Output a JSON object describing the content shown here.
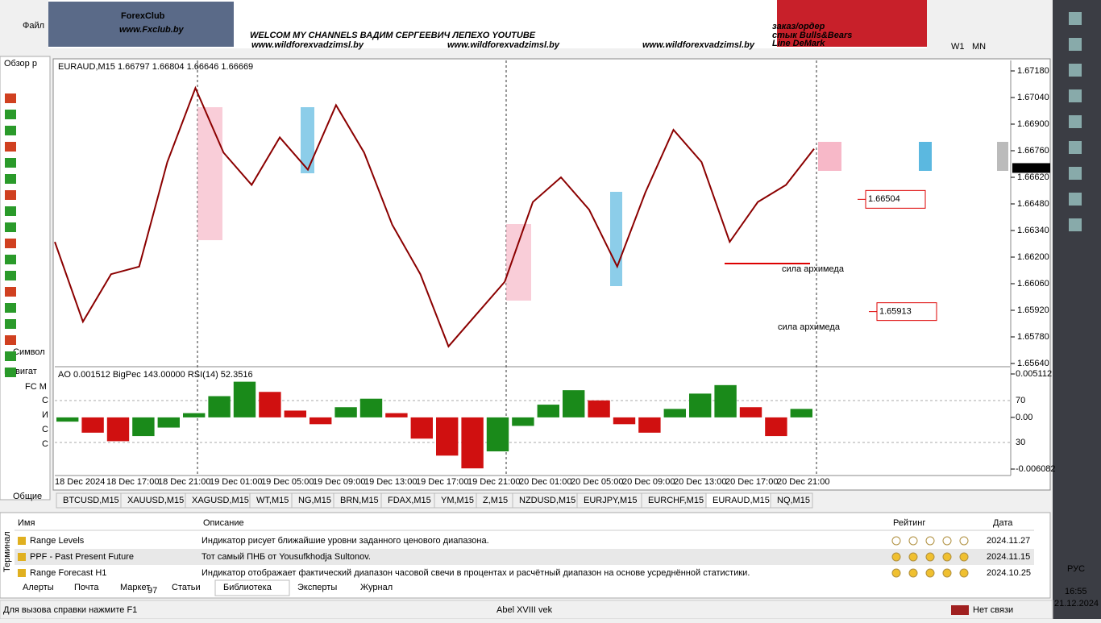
{
  "menu": {
    "file": "Файл"
  },
  "banner": {
    "logo": "ForexClub",
    "site": "www.Fxclub.by",
    "headline": "WELCOM MY CHANNELS ВАДИМ СЕРГЕЕВИЧ ЛЕПЕХО YOUTUBE",
    "links": [
      "www.wildforexvadzimsl.by",
      "www.wildforexvadzimsl.by",
      "www.wildforexvadzimsl.by"
    ],
    "right": [
      "заказ/ордер",
      "стык Bulls&Bears",
      "Line DeMark"
    ]
  },
  "toolbar": {
    "timeframes": [
      "W1",
      "MN"
    ]
  },
  "left_panel": {
    "market_watch": "Обзор р",
    "symbol_tab": "Символ",
    "navigator": "Навигат",
    "tree_root": "FC M",
    "tree_items": [
      "C",
      "И",
      "C",
      "C"
    ],
    "common_tab": "Общие"
  },
  "chart": {
    "header": "EURAUD,M15  1.66797 1.66804 1.66646 1.66669",
    "price_ticks": [
      {
        "value": 1.6718,
        "label": "1.67180"
      },
      {
        "value": 1.6704,
        "label": "1.67040"
      },
      {
        "value": 1.669,
        "label": "1.66900"
      },
      {
        "value": 1.6676,
        "label": "1.66760"
      },
      {
        "value": 1.6662,
        "label": "1.66620"
      },
      {
        "value": 1.6648,
        "label": "1.66480"
      },
      {
        "value": 1.6634,
        "label": "1.66340"
      },
      {
        "value": 1.662,
        "label": "1.66200"
      },
      {
        "value": 1.6606,
        "label": "1.66060"
      },
      {
        "value": 1.6592,
        "label": "1.65920"
      },
      {
        "value": 1.6578,
        "label": "1.65780"
      },
      {
        "value": 1.6564,
        "label": "1.65640"
      }
    ],
    "current_price": {
      "value": 1.66669,
      "label": "1.66669"
    },
    "closes": [
      1.6628,
      1.6586,
      1.6611,
      1.6615,
      1.667,
      1.6709,
      1.6675,
      1.6658,
      1.6683,
      1.6666,
      1.67,
      1.6675,
      1.6637,
      1.6611,
      1.6573,
      1.659,
      1.6607,
      1.6649,
      1.6662,
      1.6645,
      1.6615,
      1.6654,
      1.6687,
      1.667,
      1.6628,
      1.6649,
      1.6658,
      1.6677
    ],
    "levels": [
      {
        "value": 1.66504,
        "label": "1.66504"
      },
      {
        "value": 1.65913,
        "label": "1.65913"
      }
    ],
    "notes": [
      "сила архимеда",
      "сила архимеда"
    ],
    "indicator_header": "AO 0.001512  BigPec 143.00000  RSI(14) 52.3516",
    "ao_ticks": [
      0.005112,
      {
        "value": 0,
        "label": "0.00"
      },
      -0.006082
    ],
    "rsi_levels": [
      70,
      30
    ],
    "ao_values": [
      -0.0005,
      -0.0018,
      -0.0028,
      -0.0022,
      -0.0012,
      0.0005,
      0.0025,
      0.0042,
      0.003,
      0.0008,
      -0.0008,
      0.0012,
      0.0022,
      0.0005,
      -0.0025,
      -0.0045,
      -0.006,
      -0.004,
      -0.001,
      0.0015,
      0.0032,
      0.002,
      -0.0008,
      -0.0018,
      0.001,
      0.0028,
      0.0038,
      0.0012,
      -0.0022,
      0.001
    ],
    "time_labels": [
      "18 Dec 2024",
      "18 Dec 17:00",
      "18 Dec 21:00",
      "19 Dec 01:00",
      "19 Dec 05:00",
      "19 Dec 09:00",
      "19 Dec 13:00",
      "19 Dec 17:00",
      "19 Dec 21:00",
      "20 Dec 01:00",
      "20 Dec 05:00",
      "20 Dec 09:00",
      "20 Dec 13:00",
      "20 Dec 17:00",
      "20 Dec 21:00"
    ]
  },
  "tabs": [
    "BTCUSD,M15",
    "XAUUSD,M15",
    "XAGUSD,M15",
    "WT,M15",
    "NG,M15",
    "BRN,M15",
    "FDAX,M15",
    "YM,M15",
    "Z,M15",
    "NZDUSD,M15",
    "EURJPY,M15",
    "EURCHF,M15",
    "EURAUD,M15",
    "NQ,M15"
  ],
  "terminal": {
    "side_label": "Терминал",
    "columns": [
      "Имя",
      "Описание",
      "Рейтинг",
      "Дата"
    ],
    "rows": [
      [
        "Range Levels",
        "Индикатор рисует ближайшие уровни заданного ценового диапазона.",
        "2024.11.27"
      ],
      [
        "PPF - Past Present Future",
        "Тот самый ПНБ от Yousufkhodja Sultonov.",
        "2024.11.15"
      ],
      [
        "Range Forecast H1",
        "Индикатор отображает фактический диапазон часовой свечи в процентах и расчётный диапазон на основе усреднённой статистики.",
        "2024.10.25"
      ]
    ],
    "tabs": [
      "Алерты",
      "Почта",
      "Маркет",
      "Статьи",
      "Библиотека",
      "Эксперты",
      "Журнал"
    ],
    "market_badge": "97"
  },
  "status": {
    "help": "Для вызова справки нажмите F1",
    "profile": "Abel XVIII vek",
    "connection": "Нет связи"
  },
  "taskbar": {
    "lang": "РУС",
    "time": "16:55",
    "date": "21.12.2024"
  }
}
